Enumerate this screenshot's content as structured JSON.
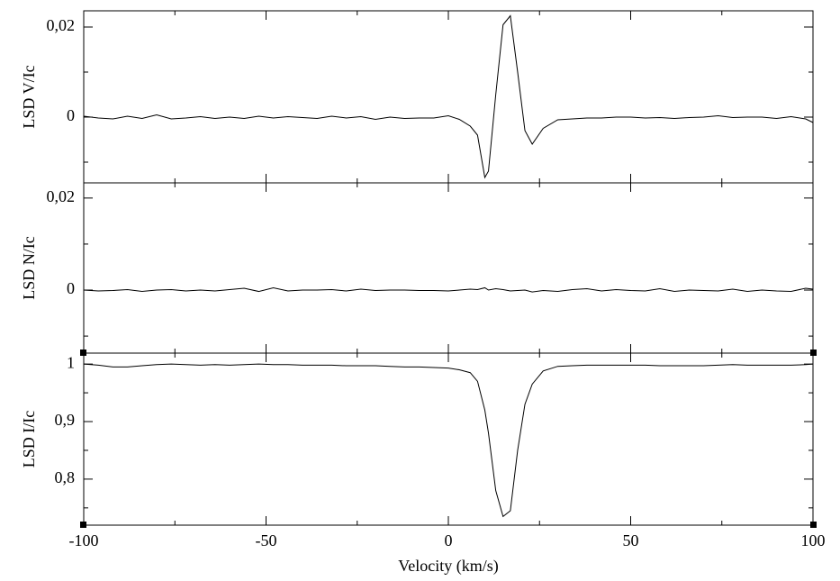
{
  "chart_data": [
    {
      "type": "line",
      "ylabel": "LSD V/Ic",
      "x": [
        -100,
        -96,
        -92,
        -88,
        -84,
        -80,
        -76,
        -72,
        -68,
        -64,
        -60,
        -56,
        -52,
        -48,
        -44,
        -40,
        -36,
        -32,
        -28,
        -24,
        -20,
        -16,
        -12,
        -8,
        -4,
        0,
        3,
        6,
        8,
        10,
        11,
        13,
        15,
        17,
        19,
        21,
        23,
        26,
        30,
        34,
        38,
        42,
        46,
        50,
        54,
        58,
        62,
        66,
        70,
        74,
        78,
        82,
        86,
        90,
        94,
        98,
        100
      ],
      "series": [
        {
          "color": "#000000",
          "values": [
            0.0002,
            -0.0002,
            -0.0004,
            0.0002,
            -0.0003,
            0.0005,
            -0.0004,
            -0.0002,
            0.0001,
            -0.0003,
            0.0,
            -0.0003,
            0.0002,
            -0.0002,
            0.0001,
            -0.0001,
            -0.0003,
            0.0002,
            -0.0002,
            0.0001,
            -0.0005,
            0.0,
            -0.0003,
            -0.0002,
            -0.0002,
            0.0003,
            -0.0005,
            -0.002,
            -0.004,
            -0.0134,
            -0.012,
            0.005,
            0.0205,
            0.0225,
            0.01,
            -0.003,
            -0.006,
            -0.0025,
            -0.0006,
            -0.0004,
            -0.0002,
            -0.0002,
            0.0,
            0.0,
            -0.0002,
            -0.0001,
            -0.0003,
            -0.0001,
            0.0,
            0.0003,
            -0.0001,
            0.0,
            0.0,
            -0.0003,
            0.0001,
            -0.0004,
            -0.0012
          ]
        }
      ],
      "xlim": [
        -100,
        100
      ],
      "xticks": [
        -100,
        -50,
        0,
        50,
        100
      ],
      "x_minor_ticks": [
        -75,
        -25,
        25,
        75
      ],
      "ylim": [
        -0.0146,
        0.0236
      ],
      "yticks": [
        0,
        {
          "value": 0.02,
          "label": "0,02"
        }
      ],
      "y_minor_ticks": [
        -0.01,
        0.01
      ]
    },
    {
      "type": "line",
      "ylabel": "LSD N/Ic",
      "x": [
        -100,
        -96,
        -92,
        -88,
        -84,
        -80,
        -76,
        -72,
        -68,
        -64,
        -60,
        -56,
        -52,
        -48,
        -44,
        -40,
        -36,
        -32,
        -28,
        -24,
        -20,
        -16,
        -12,
        -8,
        -4,
        0,
        3,
        6,
        8,
        10,
        11,
        13,
        15,
        17,
        19,
        21,
        23,
        26,
        30,
        34,
        38,
        42,
        46,
        50,
        54,
        58,
        62,
        66,
        70,
        74,
        78,
        82,
        86,
        90,
        94,
        98,
        100
      ],
      "series": [
        {
          "color": "#000000",
          "values": [
            0.0,
            -0.0002,
            -0.0001,
            0.0001,
            -0.0003,
            0.0,
            0.0001,
            -0.0002,
            0.0,
            -0.0002,
            0.0001,
            0.0004,
            -0.0003,
            0.0005,
            -0.0002,
            0.0,
            0.0,
            0.0001,
            -0.0002,
            0.0002,
            -0.0001,
            0.0,
            0.0,
            -0.0001,
            -0.0001,
            -0.0002,
            0.0,
            0.0002,
            0.0001,
            0.0005,
            0.0,
            0.0003,
            0.0001,
            -0.0002,
            -0.0001,
            0.0,
            -0.0004,
            -0.0001,
            -0.0003,
            0.0001,
            0.0003,
            -0.0002,
            0.0001,
            -0.0001,
            -0.0002,
            0.0003,
            -0.0003,
            0.0,
            -0.0001,
            -0.0002,
            0.0002,
            -0.0003,
            0.0,
            -0.0002,
            -0.0003,
            0.0004,
            0.0002
          ]
        }
      ],
      "xlim": [
        -100,
        100
      ],
      "xticks": [
        -100,
        -50,
        0,
        50,
        100
      ],
      "x_minor_ticks": [
        -75,
        -25,
        25,
        75
      ],
      "ylim": [
        -0.0137,
        0.0233
      ],
      "yticks": [
        0,
        {
          "value": 0.02,
          "label": "0,02"
        }
      ],
      "y_minor_ticks": [
        -0.01,
        0.01
      ]
    },
    {
      "type": "line",
      "ylabel": "LSD I/Ic",
      "xlabel": "Velocity (km/s)",
      "x": [
        -100,
        -96,
        -92,
        -88,
        -84,
        -80,
        -76,
        -72,
        -68,
        -64,
        -60,
        -56,
        -52,
        -48,
        -44,
        -40,
        -36,
        -32,
        -28,
        -24,
        -20,
        -16,
        -12,
        -8,
        -4,
        0,
        3,
        6,
        8,
        10,
        11,
        13,
        15,
        17,
        19,
        21,
        23,
        26,
        30,
        34,
        38,
        42,
        46,
        50,
        54,
        58,
        62,
        66,
        70,
        74,
        78,
        82,
        86,
        90,
        94,
        98,
        100
      ],
      "series": [
        {
          "color": "#000000",
          "values": [
            1.0,
            0.998,
            0.995,
            0.995,
            0.997,
            0.999,
            1.0,
            0.999,
            0.998,
            0.999,
            0.998,
            0.999,
            1.0,
            0.999,
            0.999,
            0.998,
            0.998,
            0.998,
            0.997,
            0.997,
            0.997,
            0.996,
            0.995,
            0.995,
            0.994,
            0.993,
            0.99,
            0.985,
            0.97,
            0.92,
            0.88,
            0.78,
            0.735,
            0.745,
            0.85,
            0.93,
            0.965,
            0.988,
            0.996,
            0.997,
            0.998,
            0.998,
            0.998,
            0.998,
            0.998,
            0.997,
            0.997,
            0.997,
            0.997,
            0.998,
            0.999,
            0.998,
            0.998,
            0.998,
            0.998,
            0.999,
            1.0
          ]
        }
      ],
      "xlim": [
        -100,
        100
      ],
      "xticks": [
        -100,
        -50,
        0,
        50,
        100
      ],
      "x_minor_ticks": [
        -75,
        -25,
        25,
        75
      ],
      "ylim": [
        0.72,
        1.019
      ],
      "yticks": [
        {
          "value": 0.8,
          "label": "0,8"
        },
        {
          "value": 0.9,
          "label": "0,9"
        },
        1
      ],
      "y_minor_ticks": [
        0.75,
        0.85,
        0.95
      ]
    }
  ]
}
